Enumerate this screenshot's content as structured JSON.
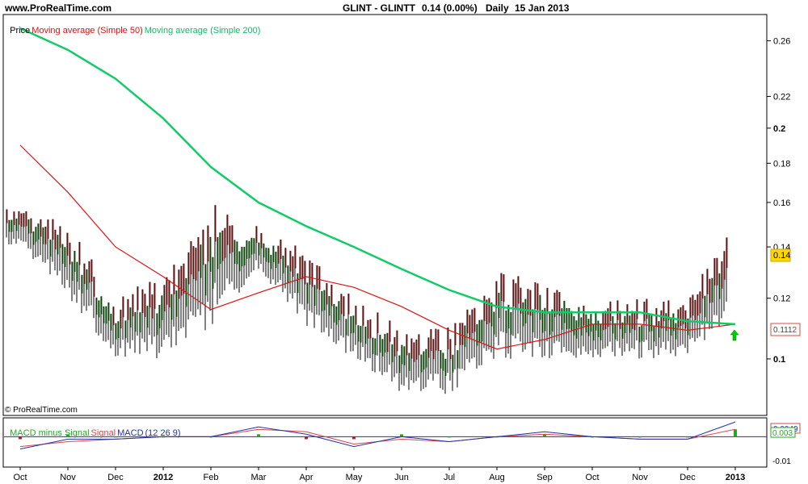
{
  "header": {
    "site": "www.ProRealTime.com",
    "symbol": "GLINT - GLINTT",
    "quote": "0.14 (0.00%)",
    "period": "Daily",
    "date": "15 Jan 2013"
  },
  "legend": {
    "price": "Price",
    "ma50": "Moving average (Simple 50)",
    "ma200": "Moving average (Simple 200)",
    "macd_hist": "MACD minus Signal",
    "macd_signal": "Signal",
    "macd": "MACD",
    "macd_params": "(12 26 9)"
  },
  "copyright": "© ProRealTime.com",
  "colors": {
    "up_bar": "#1a8a1a",
    "down_bar": "#b22222",
    "bar": "#000000",
    "ma50": "#dd1111",
    "ma200": "#11cc66",
    "macd": "#2233aa",
    "signal": "#dd4444",
    "hist": "#22aa22",
    "current_badge": "#ffd800",
    "arrow": "#00cc00"
  },
  "chart_data": [
    {
      "type": "line",
      "title": "GLINT - GLINTT Daily",
      "ylabel": "Price",
      "y_scale": "log",
      "ylim": [
        0.085,
        0.28
      ],
      "y_ticks": [
        "0.26",
        "0.22",
        "0.2",
        "0.18",
        "0.16",
        "0.14",
        "0.12",
        "0.1"
      ],
      "x_ticks": [
        "Oct",
        "Nov",
        "Dec",
        "2012",
        "Feb",
        "Mar",
        "Apr",
        "May",
        "Jun",
        "Jul",
        "Aug",
        "Sep",
        "Oct",
        "Nov",
        "Dec",
        "2013"
      ],
      "last_price": "0.14",
      "ma50_last": "0.111",
      "ma50_last_suffix": "2",
      "series": [
        {
          "name": "Moving average (Simple 50)",
          "x": [
            "Oct",
            "Nov",
            "Dec",
            "2012",
            "Feb",
            "Mar",
            "Apr",
            "May",
            "Jun",
            "Jul",
            "Aug",
            "Sep",
            "Oct",
            "Nov",
            "Dec",
            "2013"
          ],
          "values": [
            0.19,
            0.165,
            0.14,
            0.128,
            0.116,
            0.122,
            0.128,
            0.124,
            0.117,
            0.109,
            0.103,
            0.106,
            0.111,
            0.111,
            0.109,
            0.111
          ]
        },
        {
          "name": "Moving average (Simple 200)",
          "x": [
            "Oct",
            "Nov",
            "Dec",
            "2012",
            "Feb",
            "Mar",
            "Apr",
            "May",
            "Jun",
            "Jul",
            "Aug",
            "Sep",
            "Oct",
            "Nov",
            "Dec",
            "2013"
          ],
          "values": [
            0.27,
            0.253,
            0.232,
            0.206,
            0.178,
            0.16,
            0.149,
            0.14,
            0.131,
            0.123,
            0.117,
            0.115,
            0.115,
            0.115,
            0.112,
            0.111
          ]
        },
        {
          "name": "Price",
          "type": "bar-range",
          "x": [
            "Oct",
            "Nov",
            "Dec",
            "2012",
            "Feb",
            "Mar",
            "Apr",
            "May",
            "Jun",
            "Jul",
            "Aug",
            "Sep",
            "Oct",
            "Nov",
            "Dec",
            "2013"
          ],
          "high": [
            0.16,
            0.15,
            0.12,
            0.13,
            0.16,
            0.15,
            0.14,
            0.12,
            0.11,
            0.11,
            0.13,
            0.13,
            0.12,
            0.12,
            0.12,
            0.15
          ],
          "low": [
            0.14,
            0.12,
            0.1,
            0.1,
            0.11,
            0.13,
            0.11,
            0.1,
            0.09,
            0.09,
            0.1,
            0.1,
            0.1,
            0.1,
            0.1,
            0.11
          ]
        }
      ]
    },
    {
      "type": "line",
      "title": "MACD (12 26 9)",
      "ylim": [
        -0.012,
        0.007
      ],
      "y_ticks": [
        "-0.01"
      ],
      "last_values": [
        "0.003",
        "0.0049"
      ],
      "x_ticks": [
        "Oct",
        "Nov",
        "Dec",
        "2012",
        "Feb",
        "Mar",
        "Apr",
        "May",
        "Jun",
        "Jul",
        "Aug",
        "Sep",
        "Oct",
        "Nov",
        "Dec",
        "2013"
      ],
      "series": [
        {
          "name": "MACD",
          "x": [
            "Oct",
            "Nov",
            "Dec",
            "2012",
            "Feb",
            "Mar",
            "Apr",
            "May",
            "Jun",
            "Jul",
            "Aug",
            "Sep",
            "Oct",
            "Nov",
            "Dec",
            "2013"
          ],
          "values": [
            -0.005,
            -0.001,
            -0.001,
            0.0,
            0.0,
            0.004,
            0.001,
            -0.004,
            0.0,
            -0.002,
            0.0,
            0.002,
            0.0,
            -0.001,
            -0.001,
            0.006
          ]
        },
        {
          "name": "Signal",
          "x": [
            "Oct",
            "Nov",
            "Dec",
            "2012",
            "Feb",
            "Mar",
            "Apr",
            "May",
            "Jun",
            "Jul",
            "Aug",
            "Sep",
            "Oct",
            "Nov",
            "Dec",
            "2013"
          ],
          "values": [
            -0.004,
            -0.002,
            -0.001,
            0.0,
            0.0,
            0.003,
            0.002,
            -0.003,
            -0.001,
            -0.002,
            0.0,
            0.001,
            0.0,
            -0.001,
            -0.001,
            0.003
          ]
        },
        {
          "name": "MACD minus Signal",
          "x": [
            "Oct",
            "Nov",
            "Dec",
            "2012",
            "Feb",
            "Mar",
            "Apr",
            "May",
            "Jun",
            "Jul",
            "Aug",
            "Sep",
            "Oct",
            "Nov",
            "Dec",
            "2013"
          ],
          "values": [
            -0.001,
            0.001,
            0.0,
            0.0,
            0.0,
            0.001,
            -0.001,
            -0.001,
            0.001,
            0.0,
            0.0,
            0.001,
            0.0,
            0.0,
            0.0,
            0.003
          ]
        }
      ]
    }
  ]
}
